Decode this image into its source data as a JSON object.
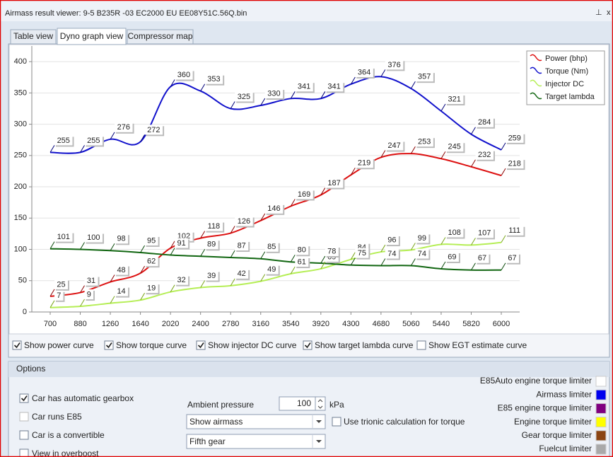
{
  "window": {
    "title": "Airmass result viewer: 9-5 B235R -03 EC2000 EU EE08Y51C.56Q.bin"
  },
  "tabs": [
    {
      "label": "Table view",
      "active": false
    },
    {
      "label": "Dyno graph view",
      "active": true
    },
    {
      "label": "Compressor map",
      "active": false
    }
  ],
  "chart_data": {
    "type": "line",
    "categories": [
      "700",
      "880",
      "1260",
      "1640",
      "2020",
      "2400",
      "2780",
      "3160",
      "3540",
      "3920",
      "4300",
      "4680",
      "5060",
      "5440",
      "5820",
      "6000"
    ],
    "series": [
      {
        "name": "Power (bhp)",
        "color": "#dd1111",
        "label_color": "#8b0000",
        "values": [
          25,
          31,
          48,
          62,
          102,
          118,
          126,
          146,
          169,
          187,
          219,
          247,
          253,
          245,
          232,
          218
        ]
      },
      {
        "name": "Torque (Nm)",
        "color": "#1111cc",
        "label_color": "#00007a",
        "values": [
          255,
          255,
          276,
          272,
          360,
          353,
          325,
          330,
          341,
          341,
          364,
          376,
          357,
          321,
          284,
          259
        ]
      },
      {
        "name": "Injector DC",
        "color": "#b5ee55",
        "label_color": "#7aa61a",
        "values": [
          7,
          9,
          14,
          19,
          32,
          39,
          42,
          49,
          61,
          69,
          84,
          96,
          99,
          108,
          107,
          111
        ]
      },
      {
        "name": "Target lambda",
        "color": "#116611",
        "label_color": "#0a4a0a",
        "values": [
          101,
          100,
          98,
          95,
          91,
          89,
          87,
          85,
          80,
          78,
          75,
          74,
          74,
          69,
          67,
          67
        ]
      }
    ],
    "ylim": [
      0,
      425
    ],
    "yticks": [
      0,
      50,
      100,
      150,
      200,
      250,
      300,
      350,
      400
    ],
    "grid": true,
    "legend": "top-right"
  },
  "curve_checkboxes": [
    {
      "label": "Show power curve",
      "checked": true
    },
    {
      "label": "Show torque curve",
      "checked": true
    },
    {
      "label": "Show injector DC curve",
      "checked": true
    },
    {
      "label": "Show target lambda curve",
      "checked": true
    },
    {
      "label": "Show EGT estimate curve",
      "checked": false
    }
  ],
  "options": {
    "title": "Options",
    "checkboxes": [
      {
        "label": "Car has automatic gearbox",
        "checked": true,
        "enabled": true
      },
      {
        "label": "Car runs E85",
        "checked": false,
        "enabled": false
      },
      {
        "label": "Car is a convertible",
        "checked": false,
        "enabled": true
      },
      {
        "label": "View in overboost",
        "checked": false,
        "enabled": true
      }
    ],
    "ambient_label": "Ambient pressure",
    "ambient_value": 100,
    "ambient_unit": "kPa",
    "dropdowns": [
      "Show airmass",
      "Fifth gear"
    ],
    "trionic_checkbox": {
      "label": "Use trionic calculation for torque",
      "checked": false
    },
    "limiters": [
      {
        "label": "E85Auto engine torque limiter",
        "color": "#ffffff"
      },
      {
        "label": "Airmass limiter",
        "color": "#0000ee"
      },
      {
        "label": "E85 engine torque limiter",
        "color": "#800080"
      },
      {
        "label": "Engine torque limiter",
        "color": "#ffff00"
      },
      {
        "label": "Gear torque limiter",
        "color": "#8b4513"
      },
      {
        "label": "Fuelcut limiter",
        "color": "#a9a9a9"
      }
    ]
  }
}
